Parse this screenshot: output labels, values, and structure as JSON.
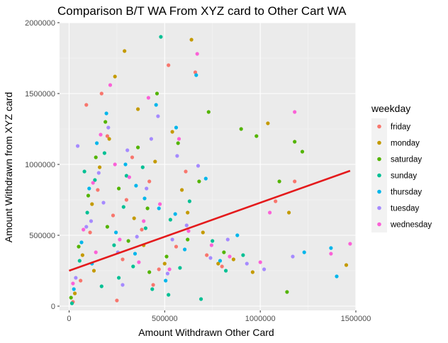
{
  "chart_data": {
    "type": "scatter",
    "title": "Comparison B/T WA From XYZ card to Other Cart WA",
    "xlabel": "Amount Withdrawn Other Card",
    "ylabel": "Amount Withdrawn from XYZ card",
    "xlim": [
      -50000,
      1500000
    ],
    "ylim": [
      -30000,
      2000000
    ],
    "x_ticks": [
      0,
      500000,
      1000000,
      1500000
    ],
    "x_tick_labels": [
      "0",
      "500000",
      "1000000",
      "1500000"
    ],
    "y_ticks": [
      0,
      500000,
      1000000,
      1500000,
      2000000
    ],
    "y_tick_labels": [
      "0",
      "500000",
      "1000000",
      "1500000",
      "2000000"
    ],
    "grid": true,
    "legend": {
      "title": "weekday",
      "position": "right"
    },
    "series": [
      {
        "name": "friday",
        "color": "#F8766D",
        "points": [
          [
            20000,
            30000
          ],
          [
            60000,
            180000
          ],
          [
            110000,
            520000
          ],
          [
            150000,
            820000
          ],
          [
            200000,
            1200000
          ],
          [
            230000,
            640000
          ],
          [
            280000,
            330000
          ],
          [
            330000,
            1050000
          ],
          [
            380000,
            540000
          ],
          [
            420000,
            880000
          ],
          [
            470000,
            260000
          ],
          [
            520000,
            1700000
          ],
          [
            560000,
            420000
          ],
          [
            610000,
            950000
          ],
          [
            660000,
            1650000
          ],
          [
            720000,
            360000
          ],
          [
            800000,
            280000
          ],
          [
            1080000,
            740000
          ],
          [
            1180000,
            880000
          ],
          [
            90000,
            1420000
          ],
          [
            170000,
            1500000
          ],
          [
            300000,
            750000
          ],
          [
            440000,
            150000
          ],
          [
            250000,
            40000
          ]
        ]
      },
      {
        "name": "monday",
        "color": "#C49A00",
        "points": [
          [
            30000,
            90000
          ],
          [
            70000,
            360000
          ],
          [
            120000,
            720000
          ],
          [
            160000,
            980000
          ],
          [
            210000,
            1180000
          ],
          [
            240000,
            1620000
          ],
          [
            290000,
            1800000
          ],
          [
            340000,
            620000
          ],
          [
            390000,
            430000
          ],
          [
            450000,
            1020000
          ],
          [
            500000,
            300000
          ],
          [
            540000,
            1230000
          ],
          [
            590000,
            820000
          ],
          [
            640000,
            1880000
          ],
          [
            700000,
            520000
          ],
          [
            780000,
            300000
          ],
          [
            860000,
            330000
          ],
          [
            960000,
            240000
          ],
          [
            1040000,
            1290000
          ],
          [
            1450000,
            290000
          ],
          [
            1150000,
            660000
          ],
          [
            130000,
            250000
          ],
          [
            360000,
            1390000
          ],
          [
            620000,
            660000
          ]
        ]
      },
      {
        "name": "saturday",
        "color": "#53B400",
        "points": [
          [
            10000,
            60000
          ],
          [
            50000,
            420000
          ],
          [
            100000,
            780000
          ],
          [
            140000,
            1050000
          ],
          [
            190000,
            1300000
          ],
          [
            260000,
            830000
          ],
          [
            310000,
            460000
          ],
          [
            360000,
            1120000
          ],
          [
            410000,
            690000
          ],
          [
            460000,
            1500000
          ],
          [
            510000,
            350000
          ],
          [
            570000,
            1150000
          ],
          [
            620000,
            470000
          ],
          [
            680000,
            880000
          ],
          [
            730000,
            1370000
          ],
          [
            810000,
            380000
          ],
          [
            900000,
            1250000
          ],
          [
            980000,
            1200000
          ],
          [
            1100000,
            880000
          ],
          [
            1180000,
            1160000
          ],
          [
            1220000,
            1090000
          ],
          [
            1140000,
            100000
          ],
          [
            200000,
            560000
          ],
          [
            420000,
            240000
          ]
        ]
      },
      {
        "name": "sunday",
        "color": "#00C094",
        "points": [
          [
            15000,
            20000
          ],
          [
            55000,
            320000
          ],
          [
            95000,
            660000
          ],
          [
            135000,
            890000
          ],
          [
            185000,
            1080000
          ],
          [
            235000,
            430000
          ],
          [
            285000,
            700000
          ],
          [
            335000,
            280000
          ],
          [
            385000,
            980000
          ],
          [
            435000,
            120000
          ],
          [
            480000,
            1900000
          ],
          [
            530000,
            610000
          ],
          [
            580000,
            270000
          ],
          [
            630000,
            740000
          ],
          [
            690000,
            50000
          ],
          [
            750000,
            460000
          ],
          [
            820000,
            250000
          ],
          [
            910000,
            360000
          ],
          [
            170000,
            140000
          ],
          [
            300000,
            920000
          ],
          [
            400000,
            550000
          ],
          [
            520000,
            80000
          ],
          [
            260000,
            200000
          ],
          [
            80000,
            950000
          ]
        ]
      },
      {
        "name": "thursday",
        "color": "#00B6EB",
        "points": [
          [
            25000,
            120000
          ],
          [
            65000,
            450000
          ],
          [
            105000,
            830000
          ],
          [
            145000,
            1150000
          ],
          [
            195000,
            1360000
          ],
          [
            245000,
            520000
          ],
          [
            295000,
            1000000
          ],
          [
            345000,
            370000
          ],
          [
            395000,
            760000
          ],
          [
            455000,
            1420000
          ],
          [
            505000,
            180000
          ],
          [
            555000,
            650000
          ],
          [
            605000,
            400000
          ],
          [
            665000,
            1630000
          ],
          [
            715000,
            900000
          ],
          [
            790000,
            320000
          ],
          [
            880000,
            500000
          ],
          [
            1230000,
            380000
          ],
          [
            1370000,
            410000
          ],
          [
            1400000,
            210000
          ],
          [
            120000,
            300000
          ],
          [
            350000,
            850000
          ],
          [
            470000,
            690000
          ],
          [
            560000,
            1260000
          ]
        ]
      },
      {
        "name": "tuesday",
        "color": "#A58AFF",
        "points": [
          [
            35000,
            200000
          ],
          [
            45000,
            1130000
          ],
          [
            115000,
            600000
          ],
          [
            155000,
            940000
          ],
          [
            205000,
            1260000
          ],
          [
            255000,
            380000
          ],
          [
            305000,
            1100000
          ],
          [
            355000,
            490000
          ],
          [
            405000,
            830000
          ],
          [
            465000,
            1340000
          ],
          [
            515000,
            230000
          ],
          [
            565000,
            1060000
          ],
          [
            615000,
            570000
          ],
          [
            675000,
            990000
          ],
          [
            740000,
            340000
          ],
          [
            830000,
            470000
          ],
          [
            930000,
            300000
          ],
          [
            1020000,
            260000
          ],
          [
            1170000,
            350000
          ],
          [
            180000,
            730000
          ],
          [
            280000,
            150000
          ],
          [
            430000,
            1180000
          ],
          [
            540000,
            470000
          ],
          [
            90000,
            560000
          ]
        ]
      },
      {
        "name": "wednesday",
        "color": "#FB61D7",
        "points": [
          [
            20000,
            160000
          ],
          [
            75000,
            540000
          ],
          [
            125000,
            870000
          ],
          [
            165000,
            1210000
          ],
          [
            215000,
            1560000
          ],
          [
            265000,
            470000
          ],
          [
            315000,
            910000
          ],
          [
            365000,
            310000
          ],
          [
            415000,
            1470000
          ],
          [
            475000,
            720000
          ],
          [
            525000,
            260000
          ],
          [
            575000,
            1180000
          ],
          [
            625000,
            530000
          ],
          [
            670000,
            1780000
          ],
          [
            745000,
            430000
          ],
          [
            840000,
            350000
          ],
          [
            1000000,
            310000
          ],
          [
            1050000,
            660000
          ],
          [
            1180000,
            1370000
          ],
          [
            1370000,
            370000
          ],
          [
            1470000,
            440000
          ],
          [
            240000,
            1000000
          ],
          [
            390000,
            600000
          ],
          [
            140000,
            380000
          ]
        ]
      }
    ],
    "trend_line": {
      "color": "#E41A1C",
      "x": [
        0,
        1470000
      ],
      "y": [
        250000,
        955000
      ]
    }
  }
}
